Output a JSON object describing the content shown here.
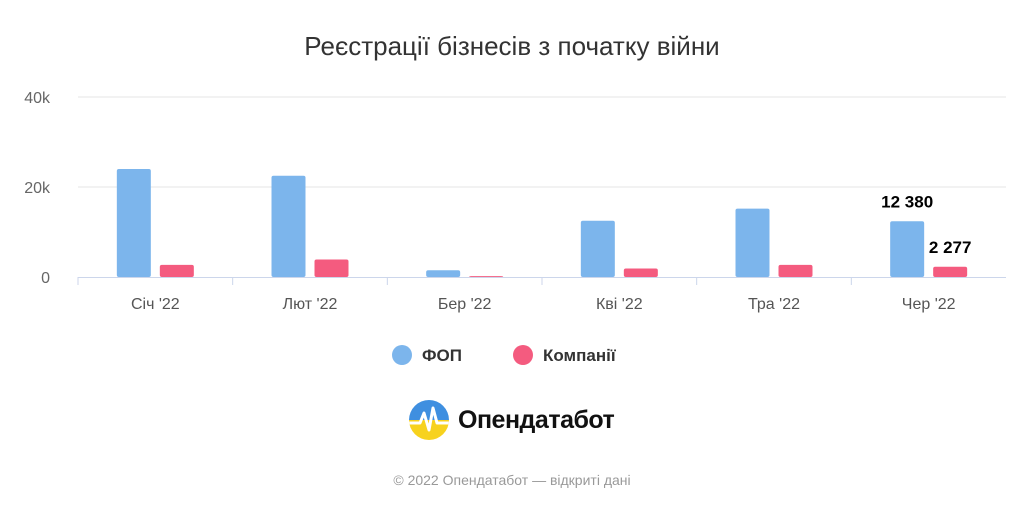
{
  "chart_data": {
    "type": "bar",
    "title": "Реєстрації бізнесів з початку війни",
    "categories": [
      "Січ '22",
      "Лют '22",
      "Бер '22",
      "Кві '22",
      "Тра '22",
      "Чер '22"
    ],
    "series": [
      {
        "name": "ФОП",
        "color": "#7cb5ec",
        "values": [
          24000,
          22500,
          1500,
          12500,
          15200,
          12380
        ]
      },
      {
        "name": "Компанії",
        "color": "#f45b7f",
        "values": [
          2700,
          3900,
          200,
          1900,
          2700,
          2277
        ]
      }
    ],
    "ylim": [
      0,
      40000
    ],
    "yticks": [
      0,
      20000,
      40000
    ],
    "ytick_labels": [
      "0",
      "20k",
      "40k"
    ],
    "data_labels": [
      {
        "series": 0,
        "index": 5,
        "text": "12 380"
      },
      {
        "series": 1,
        "index": 5,
        "text": "2 277"
      }
    ],
    "grid": true,
    "legend": "bottom-center"
  },
  "brand": {
    "name": "Опендатабот"
  },
  "credits": "© 2022 Опендатабот — відкриті дані"
}
